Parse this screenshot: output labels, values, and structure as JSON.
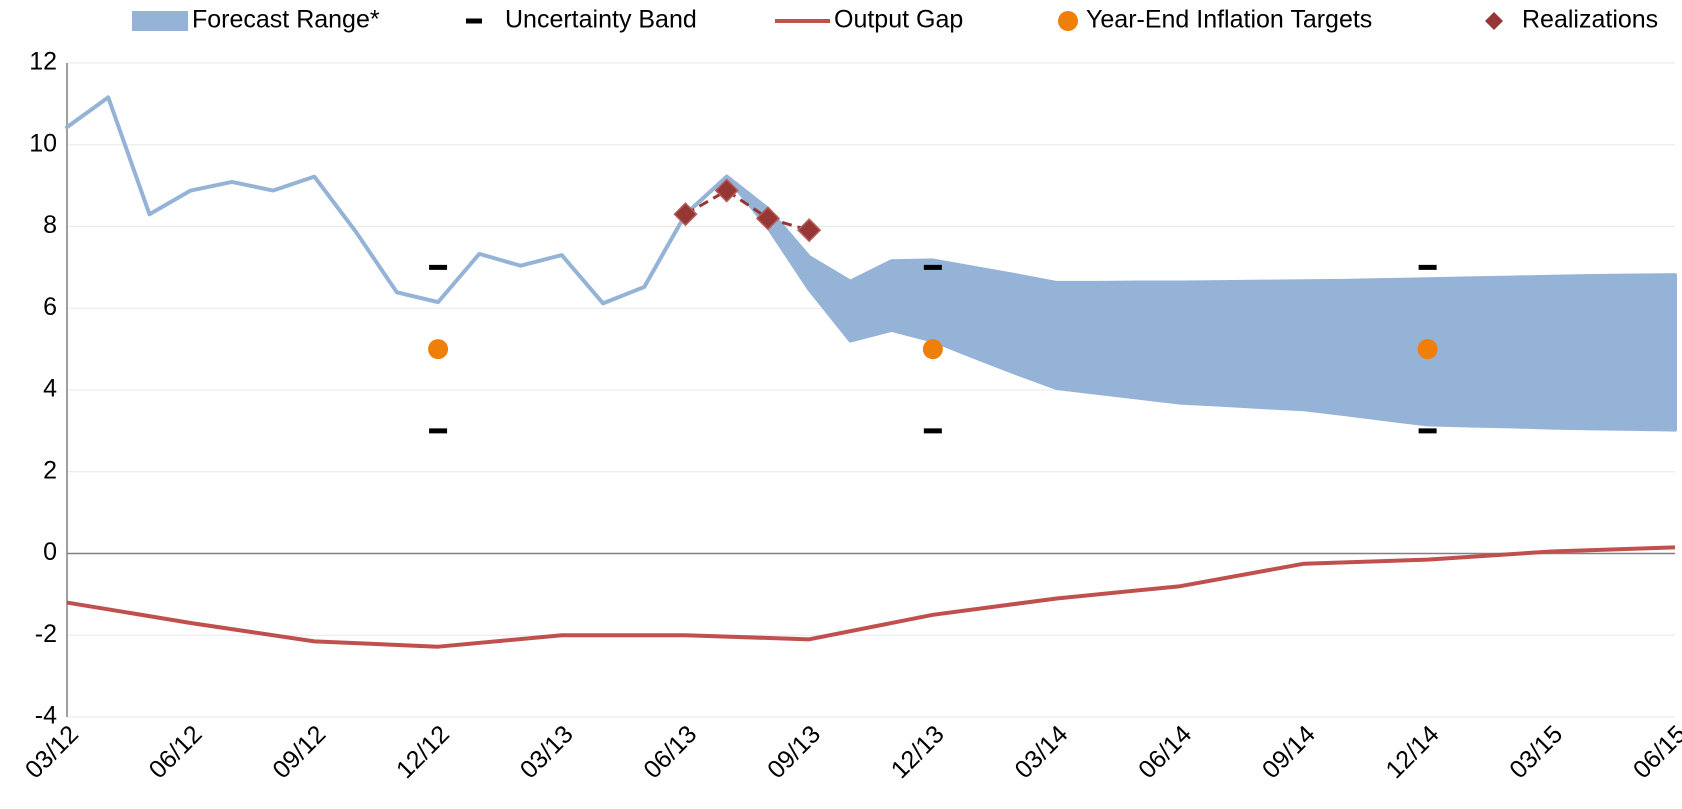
{
  "chart_data": {
    "type": "line",
    "categories": [
      "03/12",
      null,
      null,
      "06/12",
      null,
      null,
      "09/12",
      null,
      null,
      "12/12",
      null,
      null,
      "03/13",
      null,
      null,
      "06/13",
      null,
      null,
      "09/13",
      null,
      null,
      "12/13",
      null,
      null,
      "03/14",
      null,
      null,
      "06/14",
      null,
      null,
      "09/14",
      null,
      null,
      "12/14",
      null,
      null,
      "03/15",
      null,
      null,
      "06/15"
    ],
    "series": [
      {
        "name": "Forecast Range*",
        "color": "#95b3d7",
        "values": [
          10.43,
          11.16,
          8.3,
          8.88,
          9.09,
          8.88,
          9.22,
          7.88,
          6.39,
          6.15,
          7.33,
          7.04,
          7.3,
          6.12,
          6.52,
          8.3,
          9.22,
          8.43,
          7.25,
          6.65,
          7.15,
          7.17,
          6.99,
          6.81,
          6.62,
          6.62,
          6.63,
          6.63,
          6.64,
          6.65,
          6.66,
          6.67,
          6.69,
          6.71,
          6.73,
          6.75,
          6.77,
          6.79,
          6.8,
          6.81
        ],
        "low": [
          10.43,
          11.16,
          8.3,
          8.88,
          9.09,
          8.88,
          9.22,
          7.88,
          6.39,
          6.15,
          7.33,
          7.04,
          7.3,
          6.12,
          6.52,
          8.3,
          9.22,
          7.99,
          6.47,
          5.21,
          5.47,
          5.21,
          4.81,
          4.42,
          4.05,
          3.93,
          3.81,
          3.69,
          3.64,
          3.58,
          3.53,
          3.41,
          3.28,
          3.16,
          3.13,
          3.11,
          3.08,
          3.06,
          3.05,
          3.03
        ]
      },
      {
        "name": "Uncertainty Band",
        "color": "#000000",
        "x": [
          "12/12",
          "12/13",
          "12/14"
        ],
        "values": [
          7,
          7,
          7
        ],
        "low": [
          3,
          3,
          3
        ]
      },
      {
        "name": "Output Gap",
        "color": "#c0504d",
        "x": [
          "03/12",
          "06/12",
          "09/12",
          "12/12",
          "03/13",
          "06/13",
          "09/13",
          "12/13",
          "03/14",
          "06/14",
          "09/14",
          "12/14",
          "03/15",
          "06/15"
        ],
        "values": [
          -1.2,
          -1.7,
          -2.15,
          -2.28,
          -2.0,
          -2.0,
          -2.1,
          -1.5,
          -1.1,
          -0.8,
          -0.25,
          -0.15,
          0.05,
          0.15
        ]
      },
      {
        "name": "Year-End Inflation Targets",
        "color": "#f07f09",
        "x": [
          "12/12",
          "12/13",
          "12/14"
        ],
        "values": [
          5,
          5,
          5
        ]
      },
      {
        "name": "Realizations",
        "color": "#953735",
        "values": [
          null,
          null,
          null,
          null,
          null,
          null,
          null,
          null,
          null,
          null,
          null,
          null,
          null,
          null,
          null,
          8.3,
          8.88,
          8.2,
          7.91,
          null,
          null,
          null,
          null,
          null,
          null,
          null,
          null,
          null,
          null,
          null,
          null,
          null,
          null,
          null,
          null,
          null,
          null,
          null,
          null,
          null
        ]
      }
    ],
    "ylim": [
      -4,
      12
    ],
    "yticks": [
      -4,
      -2,
      0,
      2,
      4,
      6,
      8,
      10,
      12
    ],
    "grid": true
  }
}
